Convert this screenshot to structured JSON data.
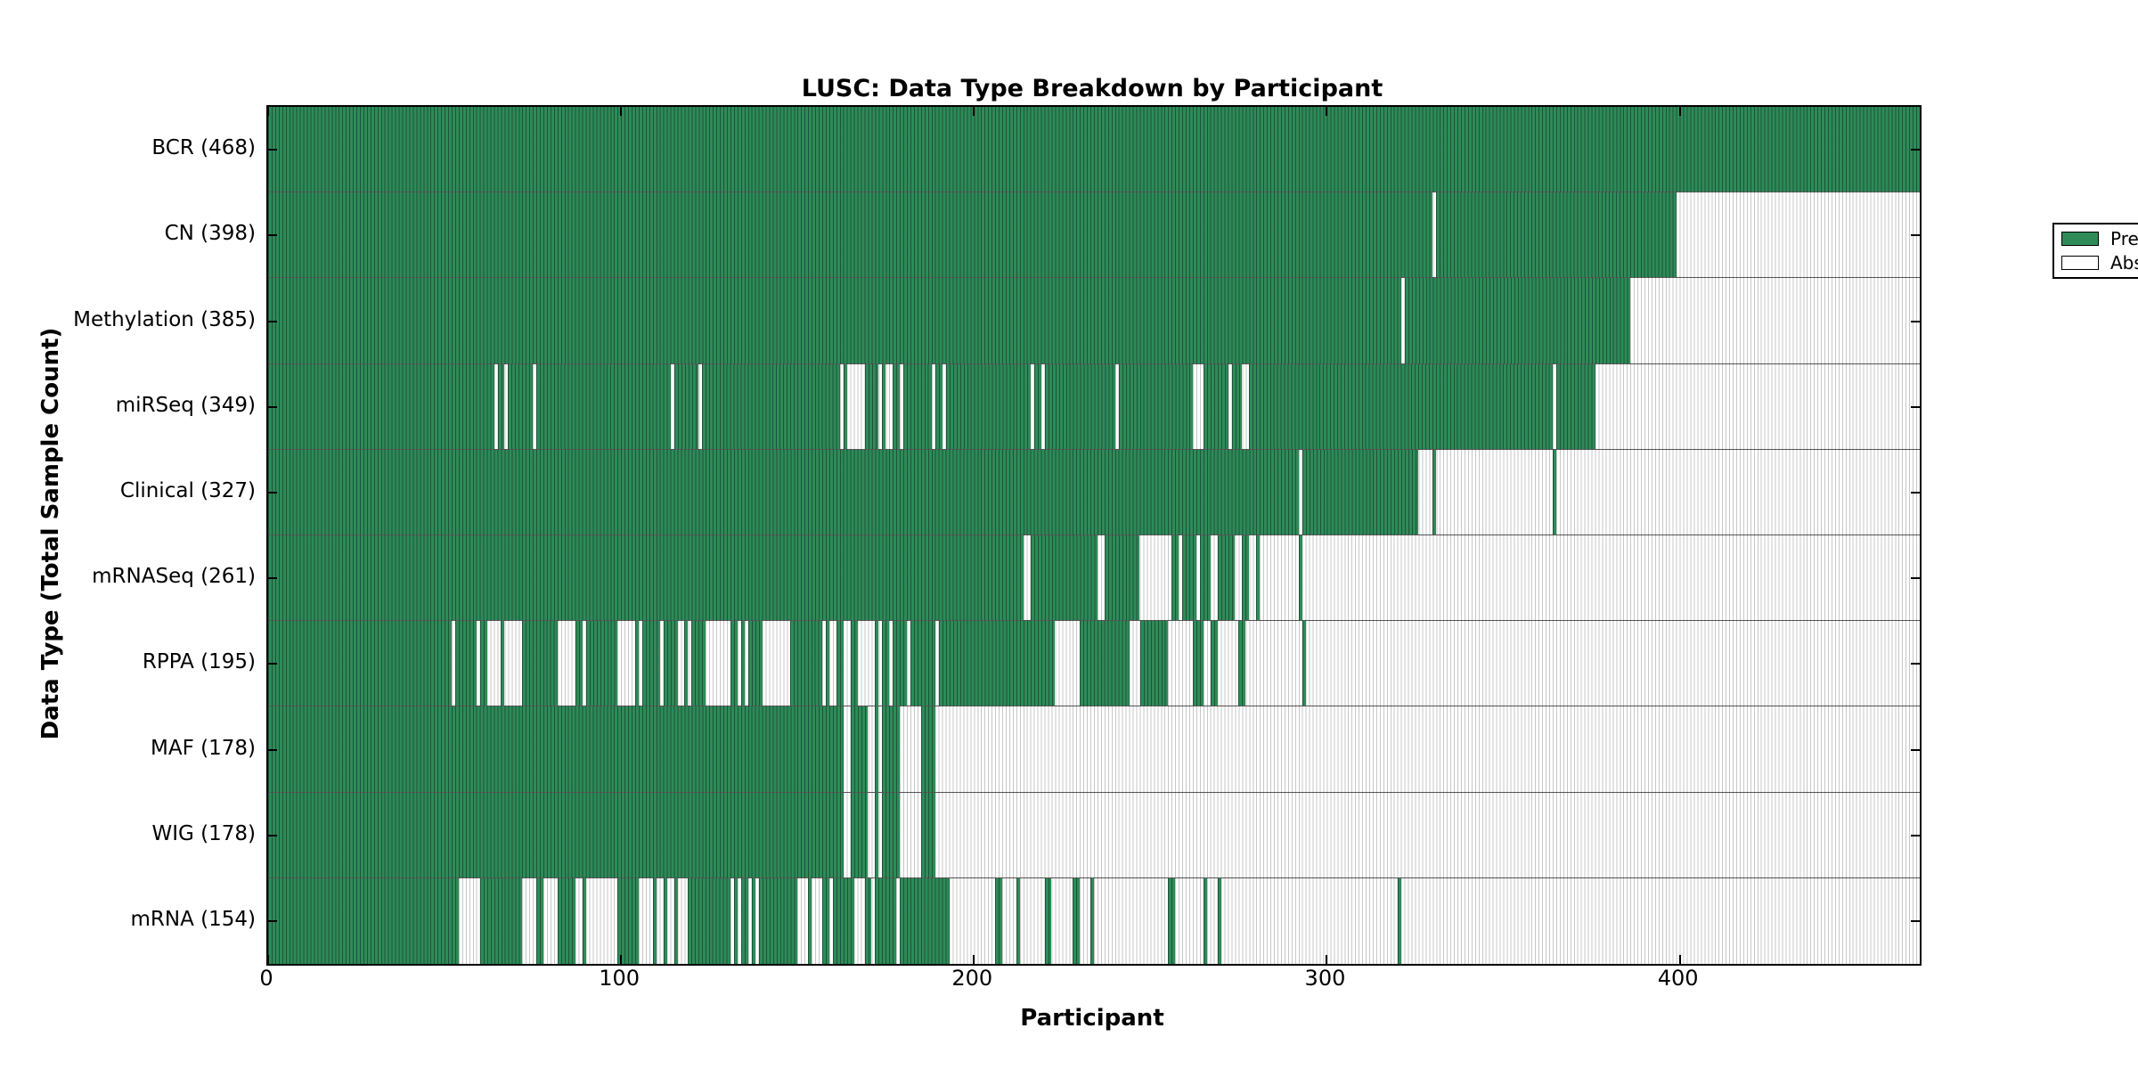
{
  "chart_data": {
    "type": "heatmap",
    "title": "LUSC: Data Type Breakdown by Participant",
    "xlabel": "Participant",
    "ylabel": "Data Type (Total Sample Count)",
    "x_range": [
      0,
      468
    ],
    "x_ticks": [
      0,
      100,
      200,
      300,
      400
    ],
    "grid": false,
    "legend_position": "upper-right",
    "legend": [
      {
        "label": "Present",
        "color": "#2e8b57"
      },
      {
        "label": "Absent",
        "color": "#ffffff"
      }
    ],
    "colors": {
      "present": "#2e8b57",
      "absent": "#ffffff",
      "edge": "#000000"
    },
    "value_encoding": "present_segments are inclusive participant index ranges [start,end] where the data type is Present; all other participants in 0..467 are Absent",
    "rows": [
      {
        "label": "BCR (468)",
        "name": "BCR",
        "count": 468,
        "present_segments": [
          [
            0,
            467
          ]
        ]
      },
      {
        "label": "CN (398)",
        "name": "CN",
        "count": 398,
        "present_segments": [
          [
            0,
            329
          ],
          [
            331,
            398
          ]
        ]
      },
      {
        "label": "Methylation (385)",
        "name": "Methylation",
        "count": 385,
        "present_segments": [
          [
            0,
            320
          ],
          [
            322,
            385
          ]
        ]
      },
      {
        "label": "miRSeq (349)",
        "name": "miRSeq",
        "count": 349,
        "present_segments": [
          [
            0,
            63
          ],
          [
            65,
            66
          ],
          [
            68,
            74
          ],
          [
            76,
            113
          ],
          [
            115,
            121
          ],
          [
            123,
            161
          ],
          [
            163,
            163
          ],
          [
            169,
            172
          ],
          [
            174,
            174
          ],
          [
            177,
            178
          ],
          [
            180,
            187
          ],
          [
            189,
            190
          ],
          [
            192,
            215
          ],
          [
            217,
            218
          ],
          [
            220,
            239
          ],
          [
            241,
            261
          ],
          [
            265,
            271
          ],
          [
            273,
            275
          ],
          [
            278,
            363
          ],
          [
            365,
            375
          ]
        ]
      },
      {
        "label": "Clinical (327)",
        "name": "Clinical",
        "count": 327,
        "present_segments": [
          [
            0,
            291
          ],
          [
            293,
            325
          ],
          [
            330,
            330
          ],
          [
            364,
            364
          ]
        ]
      },
      {
        "label": "mRNASeq (261)",
        "name": "mRNASeq",
        "count": 261,
        "present_segments": [
          [
            0,
            213
          ],
          [
            216,
            234
          ],
          [
            237,
            246
          ],
          [
            256,
            257
          ],
          [
            259,
            262
          ],
          [
            264,
            266
          ],
          [
            269,
            273
          ],
          [
            276,
            277
          ],
          [
            280,
            280
          ],
          [
            292,
            292
          ]
        ]
      },
      {
        "label": "RPPA (195)",
        "name": "RPPA",
        "count": 195,
        "present_segments": [
          [
            0,
            51
          ],
          [
            53,
            58
          ],
          [
            60,
            61
          ],
          [
            66,
            66
          ],
          [
            72,
            81
          ],
          [
            87,
            88
          ],
          [
            90,
            98
          ],
          [
            104,
            104
          ],
          [
            106,
            110
          ],
          [
            112,
            115
          ],
          [
            118,
            118
          ],
          [
            120,
            123
          ],
          [
            131,
            132
          ],
          [
            134,
            134
          ],
          [
            136,
            139
          ],
          [
            148,
            156
          ],
          [
            158,
            158
          ],
          [
            161,
            162
          ],
          [
            165,
            166
          ],
          [
            172,
            172
          ],
          [
            174,
            175
          ],
          [
            177,
            180
          ],
          [
            182,
            188
          ],
          [
            190,
            222
          ],
          [
            230,
            243
          ],
          [
            247,
            254
          ],
          [
            262,
            264
          ],
          [
            267,
            268
          ],
          [
            275,
            276
          ],
          [
            293,
            293
          ]
        ]
      },
      {
        "label": "MAF (178)",
        "name": "MAF",
        "count": 178,
        "present_segments": [
          [
            0,
            162
          ],
          [
            165,
            169
          ],
          [
            172,
            172
          ],
          [
            174,
            178
          ],
          [
            185,
            188
          ]
        ]
      },
      {
        "label": "WIG (178)",
        "name": "WIG",
        "count": 178,
        "present_segments": [
          [
            0,
            162
          ],
          [
            165,
            169
          ],
          [
            172,
            172
          ],
          [
            174,
            178
          ],
          [
            185,
            188
          ]
        ]
      },
      {
        "label": "mRNA (154)",
        "name": "mRNA",
        "count": 154,
        "present_segments": [
          [
            0,
            53
          ],
          [
            60,
            71
          ],
          [
            76,
            77
          ],
          [
            82,
            86
          ],
          [
            89,
            89
          ],
          [
            99,
            104
          ],
          [
            109,
            109
          ],
          [
            112,
            112
          ],
          [
            115,
            115
          ],
          [
            119,
            130
          ],
          [
            132,
            132
          ],
          [
            134,
            135
          ],
          [
            137,
            137
          ],
          [
            139,
            149
          ],
          [
            153,
            153
          ],
          [
            157,
            158
          ],
          [
            160,
            165
          ],
          [
            169,
            170
          ],
          [
            172,
            177
          ],
          [
            179,
            192
          ],
          [
            206,
            207
          ],
          [
            212,
            212
          ],
          [
            220,
            221
          ],
          [
            228,
            229
          ],
          [
            233,
            233
          ],
          [
            255,
            256
          ],
          [
            265,
            265
          ],
          [
            269,
            269
          ],
          [
            320,
            320
          ]
        ]
      }
    ]
  }
}
